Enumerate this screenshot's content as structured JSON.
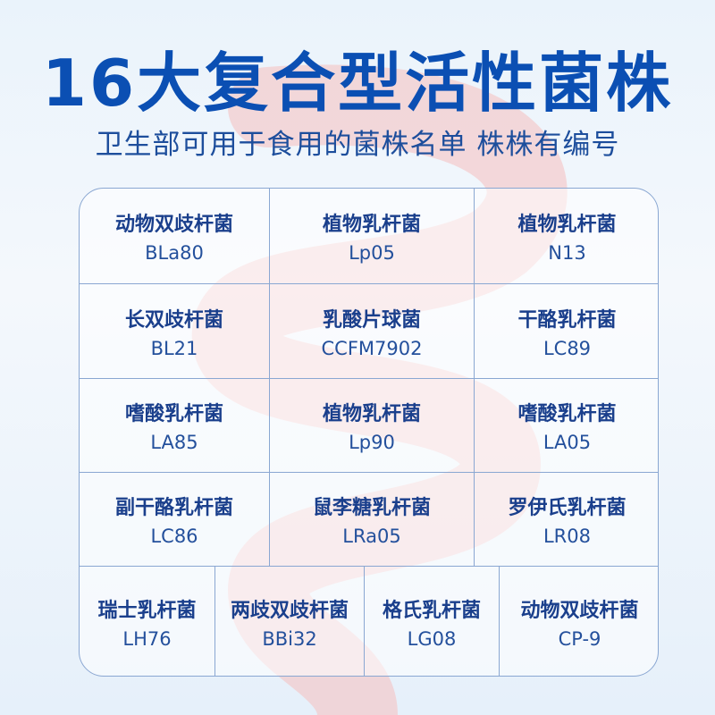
{
  "title": "16大复合型活性菌株",
  "subtitle": "卫生部可用于食用的菌株名单 株株有编号",
  "strains": [
    {
      "name": "动物双歧杆菌",
      "code": "BLa80"
    },
    {
      "name": "植物乳杆菌",
      "code": "Lp05"
    },
    {
      "name": "植物乳杆菌",
      "code": "N13"
    },
    {
      "name": "长双歧杆菌",
      "code": "BL21"
    },
    {
      "name": "乳酸片球菌",
      "code": "CCFM7902"
    },
    {
      "name": "干酪乳杆菌",
      "code": "LC89"
    },
    {
      "name": "嗜酸乳杆菌",
      "code": "LA85"
    },
    {
      "name": "植物乳杆菌",
      "code": "Lp90"
    },
    {
      "name": "嗜酸乳杆菌",
      "code": "LA05"
    },
    {
      "name": "副干酪乳杆菌",
      "code": "LC86"
    },
    {
      "name": "鼠李糖乳杆菌",
      "code": "LRa05"
    },
    {
      "name": "罗伊氏乳杆菌",
      "code": "LR08"
    },
    {
      "name": "瑞士乳杆菌",
      "code": "LH76"
    },
    {
      "name": "两歧双歧杆菌",
      "code": "BBi32"
    },
    {
      "name": "格氏乳杆菌",
      "code": "LG08"
    },
    {
      "name": "动物双歧杆菌",
      "code": "CP-9"
    }
  ],
  "colors": {
    "title": "#0b4fb3",
    "text": "#1a3f8c",
    "border": "#8aa7d2",
    "intestine": "#f2b6b6"
  }
}
